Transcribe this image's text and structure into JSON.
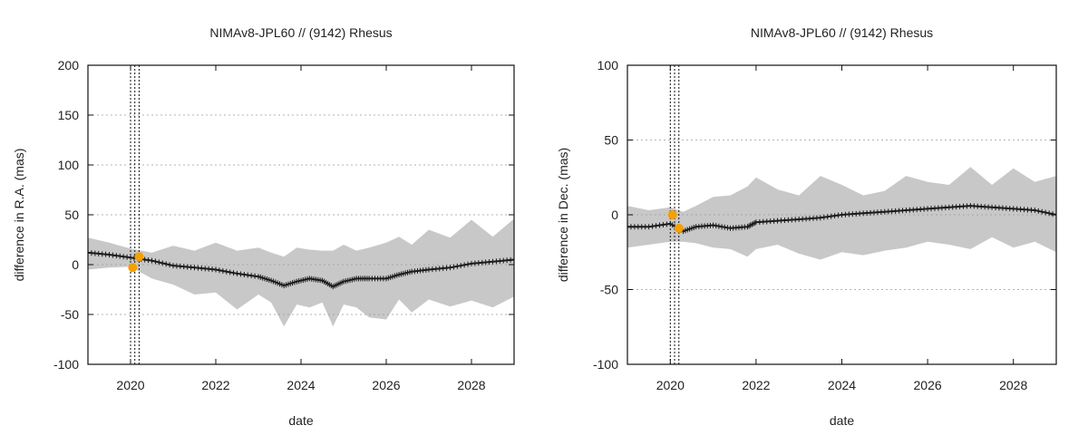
{
  "chart_data": [
    {
      "type": "line",
      "title": "NIMAv8-JPL60 // (9142) Rhesus",
      "xlabel": "date",
      "ylabel": "difference in R.A. (mas)",
      "xlim": [
        2019.0,
        2029.0
      ],
      "ylim": [
        -100,
        200
      ],
      "x_ticks": [
        2020,
        2022,
        2024,
        2026,
        2028
      ],
      "y_ticks": [
        -100,
        -50,
        0,
        50,
        100,
        150,
        200
      ],
      "grid": "horizontal dotted",
      "vlines": [
        2020.0,
        2020.1,
        2020.2
      ],
      "series": [
        {
          "kind": "line",
          "color": "#1a1a1a",
          "x": [
            2019.0,
            2019.5,
            2020.0,
            2020.5,
            2021.0,
            2021.5,
            2022.0,
            2022.5,
            2023.0,
            2023.3,
            2023.6,
            2023.9,
            2024.2,
            2024.5,
            2024.75,
            2025.0,
            2025.3,
            2025.6,
            2026.0,
            2026.3,
            2026.6,
            2027.0,
            2027.5,
            2028.0,
            2028.5,
            2029.0
          ],
          "y": [
            12,
            10,
            7,
            4,
            -1,
            -3,
            -5,
            -9,
            -12,
            -16,
            -21,
            -17,
            -14,
            -16,
            -22,
            -17,
            -14,
            -14,
            -14,
            -10,
            -7,
            -5,
            -3,
            1,
            3,
            5
          ]
        },
        {
          "kind": "band",
          "color": "#c8c8c8",
          "x": [
            2019.0,
            2019.5,
            2020.0,
            2020.5,
            2021.0,
            2021.5,
            2022.0,
            2022.5,
            2023.0,
            2023.3,
            2023.6,
            2023.9,
            2024.2,
            2024.5,
            2024.75,
            2025.0,
            2025.3,
            2025.6,
            2026.0,
            2026.3,
            2026.6,
            2027.0,
            2027.5,
            2028.0,
            2028.5,
            2029.0
          ],
          "upper": [
            27,
            22,
            16,
            12,
            19,
            14,
            22,
            14,
            17,
            12,
            8,
            17,
            15,
            14,
            14,
            20,
            14,
            17,
            22,
            28,
            20,
            35,
            27,
            45,
            28,
            46
          ],
          "lower": [
            -5,
            -3,
            -2,
            -14,
            -20,
            -30,
            -28,
            -45,
            -30,
            -38,
            -62,
            -40,
            -43,
            -38,
            -62,
            -40,
            -43,
            -53,
            -55,
            -35,
            -48,
            -35,
            -42,
            -36,
            -43,
            -32
          ]
        },
        {
          "kind": "points",
          "color": "#f5a000",
          "x": [
            2020.05,
            2020.2
          ],
          "y": [
            -3,
            8
          ]
        }
      ]
    },
    {
      "type": "line",
      "title": "NIMAv8-JPL60 // (9142) Rhesus",
      "xlabel": "date",
      "ylabel": "difference in Dec. (mas)",
      "xlim": [
        2019.0,
        2029.0
      ],
      "ylim": [
        -100,
        100
      ],
      "x_ticks": [
        2020,
        2022,
        2024,
        2026,
        2028
      ],
      "y_ticks": [
        -100,
        -50,
        0,
        50,
        100
      ],
      "grid": "horizontal dotted",
      "vlines": [
        2020.0,
        2020.1,
        2020.2
      ],
      "series": [
        {
          "kind": "line",
          "color": "#1a1a1a",
          "x": [
            2019.0,
            2019.5,
            2020.0,
            2020.3,
            2020.6,
            2021.0,
            2021.4,
            2021.8,
            2022.0,
            2022.5,
            2023.0,
            2023.5,
            2024.0,
            2024.5,
            2025.0,
            2025.5,
            2026.0,
            2026.5,
            2027.0,
            2027.5,
            2028.0,
            2028.5,
            2029.0
          ],
          "y": [
            -8,
            -8,
            -6,
            -11,
            -8,
            -7,
            -9,
            -8,
            -5,
            -4,
            -3,
            -2,
            0,
            1,
            2,
            3,
            4,
            5,
            6,
            5,
            4,
            3,
            0
          ]
        },
        {
          "kind": "band",
          "color": "#c8c8c8",
          "x": [
            2019.0,
            2019.5,
            2020.0,
            2020.3,
            2020.6,
            2021.0,
            2021.4,
            2021.8,
            2022.0,
            2022.5,
            2023.0,
            2023.5,
            2024.0,
            2024.5,
            2025.0,
            2025.5,
            2026.0,
            2026.5,
            2027.0,
            2027.5,
            2028.0,
            2028.5,
            2029.0
          ],
          "upper": [
            6,
            3,
            5,
            2,
            6,
            12,
            13,
            19,
            25,
            17,
            13,
            26,
            20,
            13,
            16,
            26,
            22,
            20,
            32,
            20,
            31,
            22,
            26
          ],
          "lower": [
            -22,
            -20,
            -18,
            -18,
            -19,
            -22,
            -23,
            -28,
            -23,
            -20,
            -26,
            -30,
            -25,
            -27,
            -24,
            -22,
            -18,
            -20,
            -23,
            -15,
            -22,
            -18,
            -25
          ]
        },
        {
          "kind": "points",
          "color": "#f5a000",
          "x": [
            2020.05,
            2020.2
          ],
          "y": [
            0,
            -9
          ]
        }
      ]
    }
  ]
}
